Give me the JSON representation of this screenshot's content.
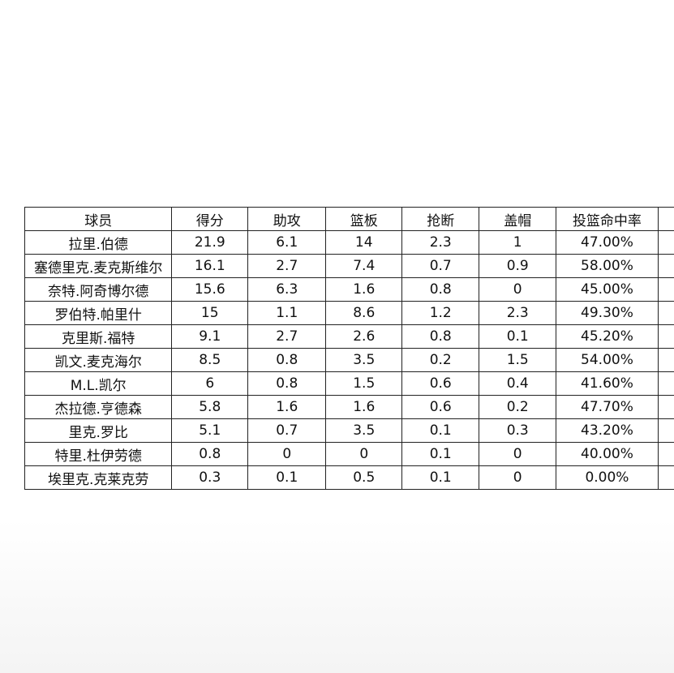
{
  "table": {
    "header": [
      "球员",
      "得分",
      "助攻",
      "篮板",
      "抢断",
      "盖帽",
      "投篮命中率"
    ],
    "rows": [
      [
        "拉里.伯德",
        "21.9",
        "6.1",
        "14",
        "2.3",
        "1",
        "47.00%"
      ],
      [
        "塞德里克.麦克斯维尔",
        "16.1",
        "2.7",
        "7.4",
        "0.7",
        "0.9",
        "58.00%"
      ],
      [
        "奈特.阿奇博尔德",
        "15.6",
        "6.3",
        "1.6",
        "0.8",
        "0",
        "45.00%"
      ],
      [
        "罗伯特.帕里什",
        "15",
        "1.1",
        "8.6",
        "1.2",
        "2.3",
        "49.30%"
      ],
      [
        "克里斯.福特",
        "9.1",
        "2.7",
        "2.6",
        "0.8",
        "0.1",
        "45.20%"
      ],
      [
        "凯文.麦克海尔",
        "8.5",
        "0.8",
        "3.5",
        "0.2",
        "1.5",
        "54.00%"
      ],
      [
        "M.L.凯尔",
        "6",
        "0.8",
        "1.5",
        "0.6",
        "0.4",
        "41.60%"
      ],
      [
        "杰拉德.亨德森",
        "5.8",
        "1.6",
        "1.6",
        "0.6",
        "0.2",
        "47.70%"
      ],
      [
        "里克.罗比",
        "5.1",
        "0.7",
        "3.5",
        "0.1",
        "0.3",
        "43.20%"
      ],
      [
        "特里.杜伊劳德",
        "0.8",
        "0",
        "0",
        "0.1",
        "0",
        "40.00%"
      ],
      [
        "埃里克.克莱克劳",
        "0.3",
        "0.1",
        "0.5",
        "0.1",
        "0",
        "0.00%"
      ]
    ]
  }
}
